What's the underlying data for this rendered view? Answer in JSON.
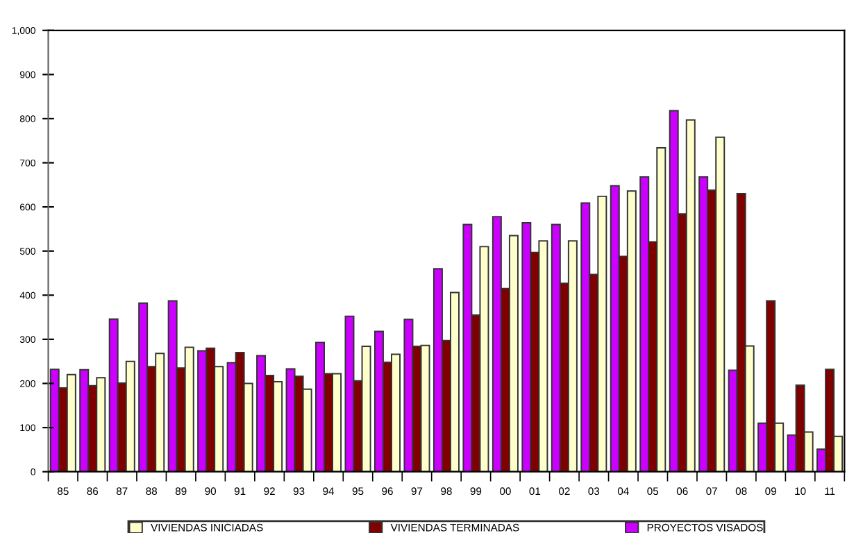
{
  "chart_data": {
    "type": "bar",
    "categories": [
      "85",
      "86",
      "87",
      "88",
      "89",
      "90",
      "91",
      "92",
      "93",
      "94",
      "95",
      "96",
      "97",
      "98",
      "99",
      "00",
      "01",
      "02",
      "03",
      "04",
      "05",
      "06",
      "07",
      "08",
      "09",
      "10",
      "11"
    ],
    "series": [
      {
        "name": "PROYECTOS VISADOS",
        "color": "#cc00ff",
        "values": [
          232,
          231,
          346,
          382,
          387,
          274,
          247,
          263,
          233,
          293,
          352,
          318,
          345,
          460,
          560,
          578,
          564,
          560,
          609,
          648,
          668,
          818,
          668,
          230,
          110,
          83,
          51
        ]
      },
      {
        "name": "VIVIENDAS TERMINADAS",
        "color": "#800000",
        "values": [
          190,
          195,
          201,
          238,
          235,
          280,
          270,
          218,
          216,
          222,
          206,
          248,
          284,
          297,
          355,
          415,
          497,
          427,
          447,
          488,
          521,
          584,
          638,
          630,
          387,
          196,
          232
        ]
      },
      {
        "name": "VIVIENDAS INICIADAS",
        "color": "#ffffcc",
        "values": [
          220,
          213,
          250,
          268,
          282,
          238,
          200,
          204,
          187,
          222,
          284,
          266,
          286,
          406,
          510,
          535,
          523,
          523,
          624,
          636,
          734,
          797,
          758,
          285,
          110,
          90,
          80
        ]
      }
    ],
    "ylim": [
      0,
      1000
    ],
    "yticks": [
      0,
      100,
      200,
      300,
      400,
      500,
      600,
      700,
      800,
      900,
      {
        "value": 1000,
        "label": "1,000"
      }
    ],
    "grid": false,
    "legend": "bottom"
  }
}
